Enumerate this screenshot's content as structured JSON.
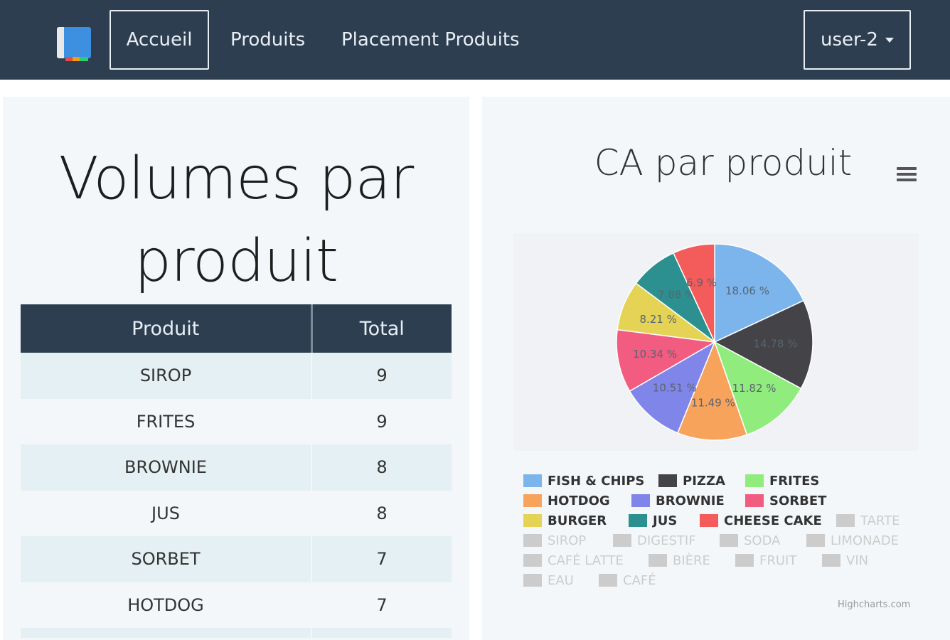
{
  "nav": {
    "links": [
      {
        "label": "Accueil",
        "active": true
      },
      {
        "label": "Produits",
        "active": false
      },
      {
        "label": "Placement Produits",
        "active": false
      }
    ],
    "user": "user-2"
  },
  "volumes": {
    "title": "Volumes par produit",
    "headers": [
      "Produit",
      "Total"
    ],
    "rows": [
      [
        "SIROP",
        "9"
      ],
      [
        "FRITES",
        "9"
      ],
      [
        "BROWNIE",
        "8"
      ],
      [
        "JUS",
        "8"
      ],
      [
        "SORBET",
        "7"
      ],
      [
        "HOTDOG",
        "7"
      ]
    ]
  },
  "chart": {
    "title": "CA par produit",
    "credits": "Highcharts.com",
    "menu_icon": "hamburger-icon"
  },
  "chart_data": {
    "type": "pie",
    "title": "CA par produit",
    "series": [
      {
        "name": "FISH & CHIPS",
        "value": 18.06,
        "label": "18.06 %",
        "color": "#7cb5ec",
        "visible": true
      },
      {
        "name": "PIZZA",
        "value": 14.78,
        "label": "14.78 %",
        "color": "#434348",
        "visible": true
      },
      {
        "name": "FRITES",
        "value": 11.82,
        "label": "11.82 %",
        "color": "#90ed7d",
        "visible": true
      },
      {
        "name": "HOTDOG",
        "value": 11.49,
        "label": "11.49 %",
        "color": "#f7a35c",
        "visible": true
      },
      {
        "name": "BROWNIE",
        "value": 10.51,
        "label": "10.51 %",
        "color": "#8085e9",
        "visible": true
      },
      {
        "name": "SORBET",
        "value": 10.34,
        "label": "10.34 %",
        "color": "#f15c80",
        "visible": true
      },
      {
        "name": "BURGER",
        "value": 8.21,
        "label": "8.21 %",
        "color": "#e4d354",
        "visible": true
      },
      {
        "name": "JUS",
        "value": 7.88,
        "label": "7.88 %",
        "color": "#2b908f",
        "visible": true
      },
      {
        "name": "CHEESE CAKE",
        "value": 6.9,
        "label": "6.9 %",
        "color": "#f45b5b",
        "visible": true
      },
      {
        "name": "TARTE",
        "visible": false
      },
      {
        "name": "SIROP",
        "visible": false
      },
      {
        "name": "DIGESTIF",
        "visible": false
      },
      {
        "name": "SODA",
        "visible": false
      },
      {
        "name": "LIMONADE",
        "visible": false
      },
      {
        "name": "CAFÉ LATTE",
        "visible": false
      },
      {
        "name": "BIÈRE",
        "visible": false
      },
      {
        "name": "FRUIT",
        "visible": false
      },
      {
        "name": "VIN",
        "visible": false
      },
      {
        "name": "EAU",
        "visible": false
      },
      {
        "name": "CAFÉ",
        "visible": false
      }
    ]
  }
}
